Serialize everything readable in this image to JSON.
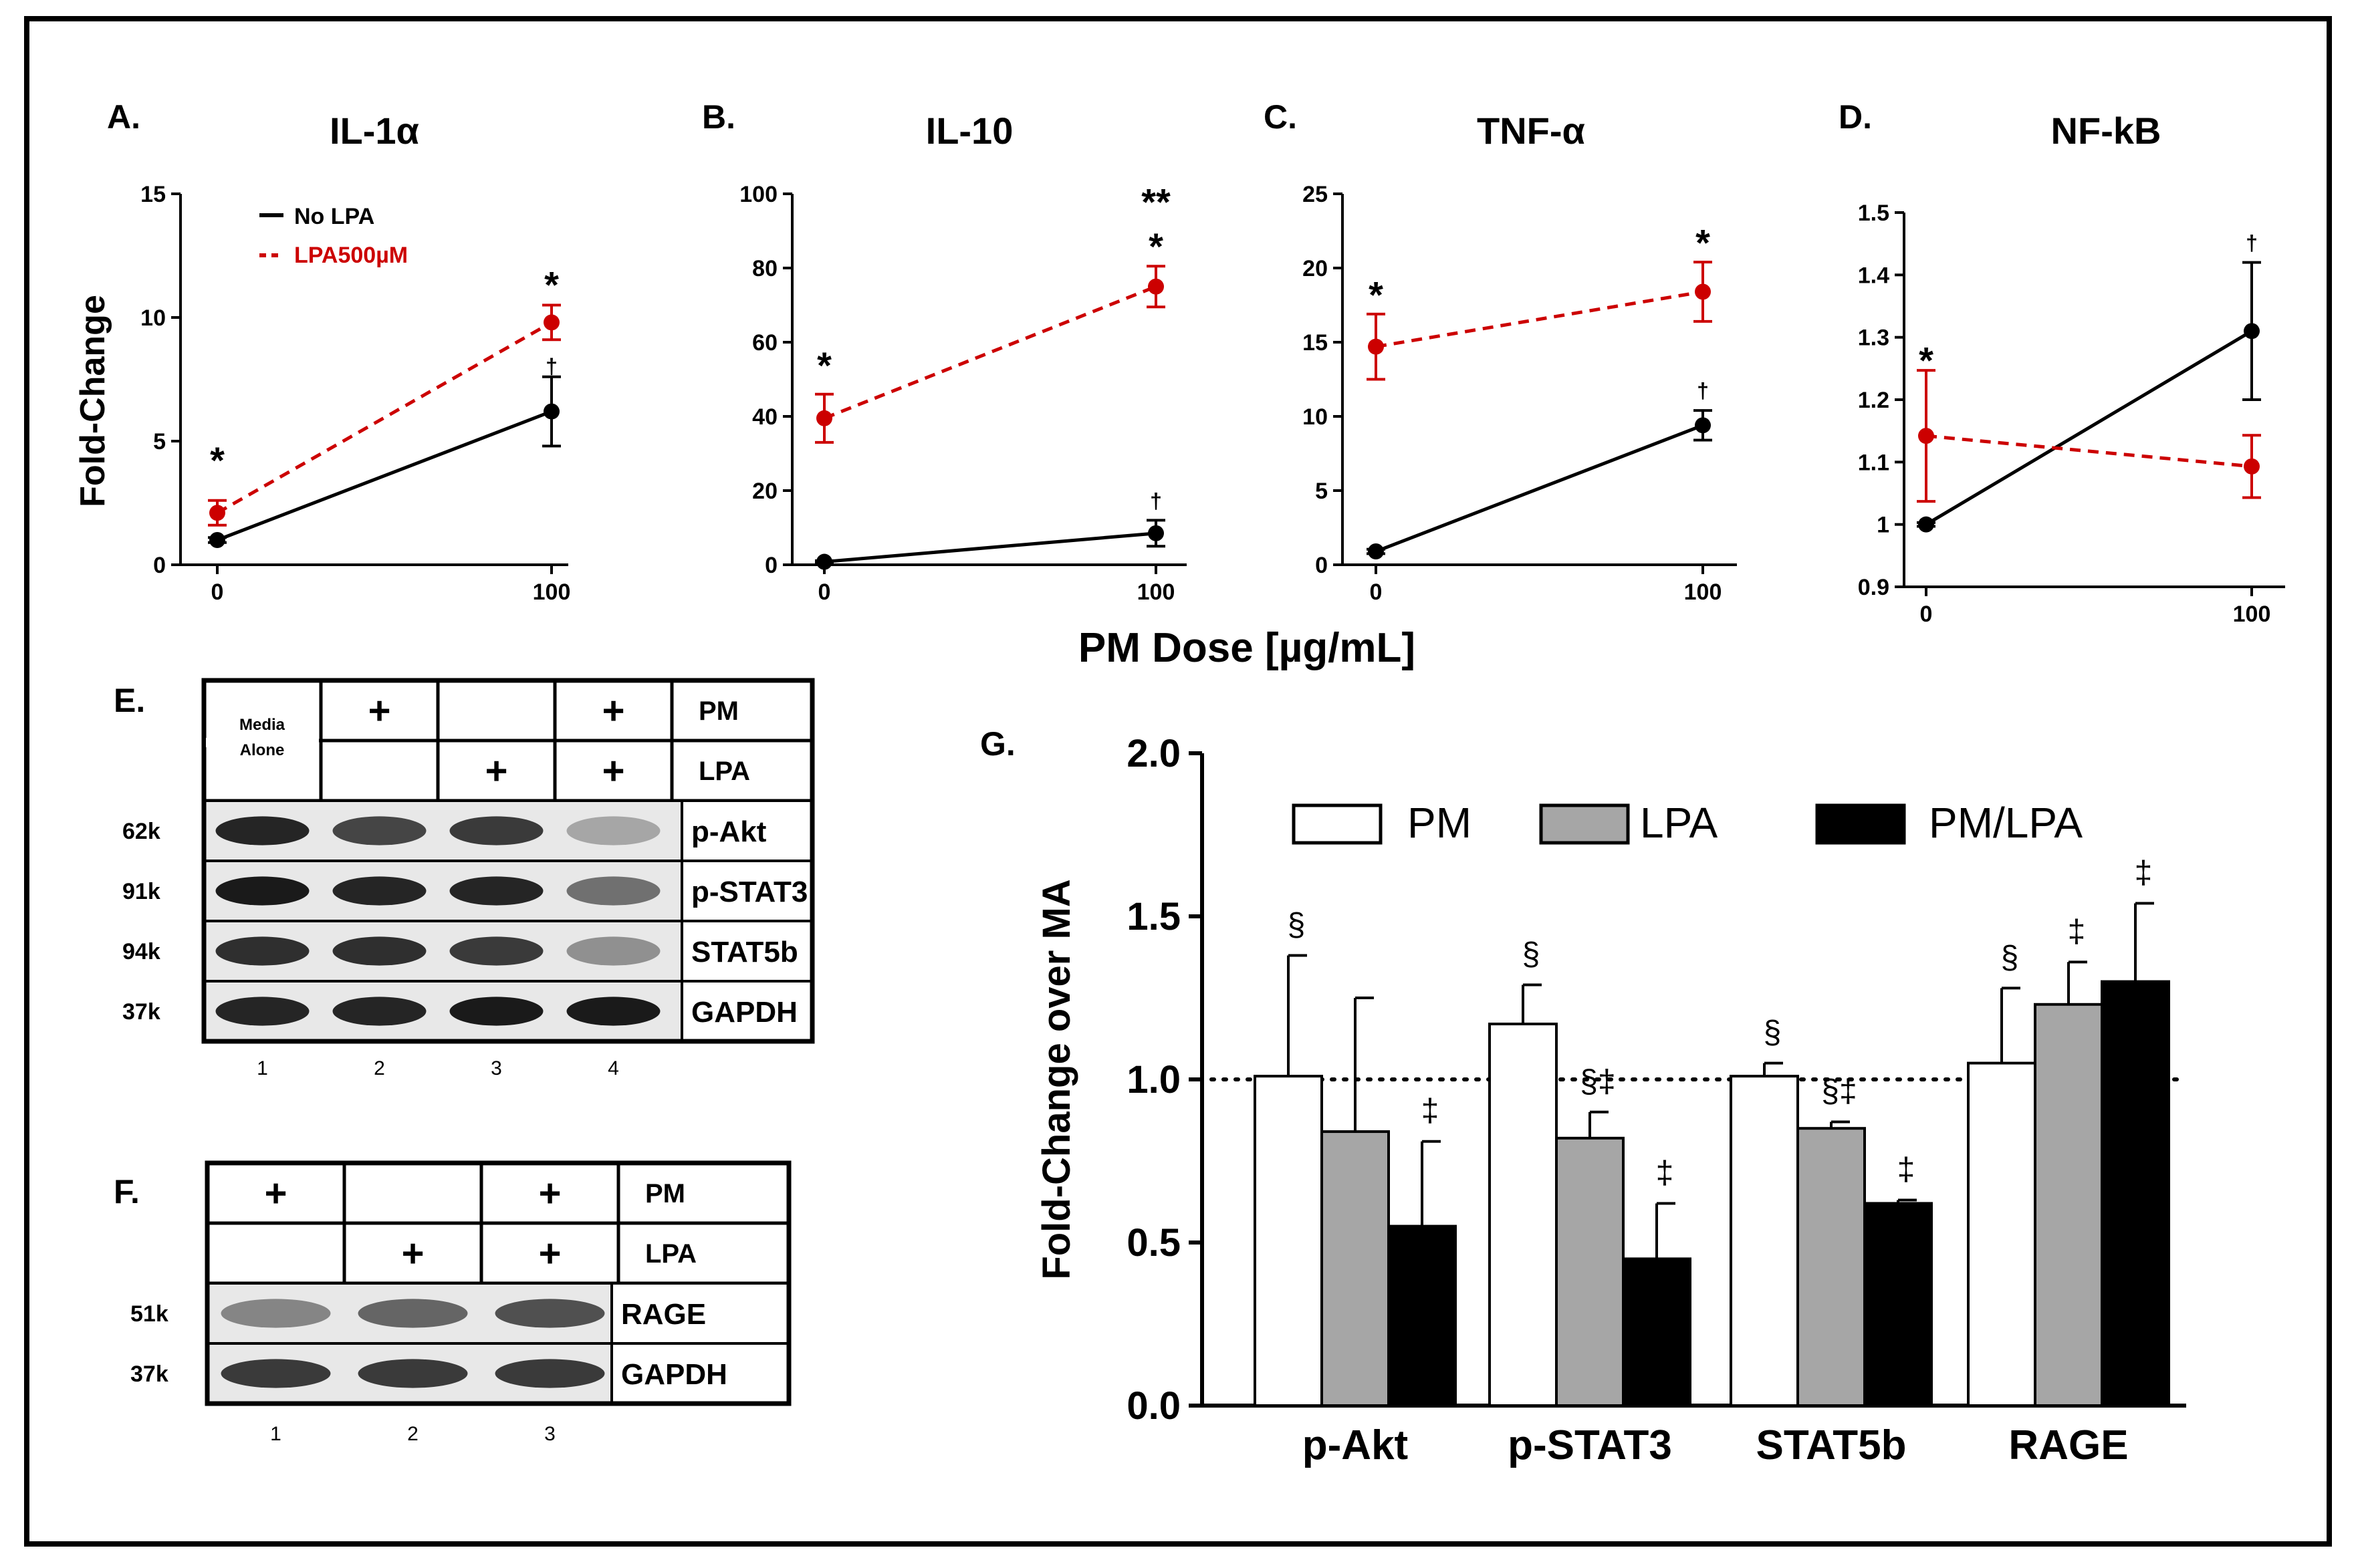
{
  "panel_letters": {
    "A": "A.",
    "B": "B.",
    "C": "C.",
    "D": "D.",
    "E": "E.",
    "F": "F.",
    "G": "G."
  },
  "shared_xlabel": "PM Dose [µg/mL]",
  "line_ylabel": "Fold-Change",
  "legend": {
    "no_lpa": "No LPA",
    "lpa": "LPA500µM"
  },
  "colors": {
    "no_lpa": "#000000",
    "lpa": "#cc0000",
    "pm": "#ffffff",
    "lpa_bar": "#a6a6a6",
    "pmlpa": "#000000"
  },
  "chart_data": [
    {
      "id": "A",
      "type": "line",
      "title": "IL-1α",
      "xlabel": "PM Dose [µg/mL]",
      "ylabel": "Fold-Change",
      "x": [
        0,
        100
      ],
      "ylim": [
        0,
        15
      ],
      "yticks": [
        0,
        5,
        10,
        15
      ],
      "series": [
        {
          "name": "No LPA",
          "values": [
            1.0,
            6.2
          ],
          "err": [
            0.1,
            1.4
          ],
          "style": "solid"
        },
        {
          "name": "LPA500µM",
          "values": [
            2.1,
            9.8
          ],
          "err": [
            0.5,
            0.7
          ],
          "style": "dashed"
        }
      ],
      "annotations": [
        {
          "x": 0,
          "y": 4.4,
          "text": "*",
          "kind": "star"
        },
        {
          "x": 100,
          "y": 11.5,
          "text": "*",
          "kind": "star"
        },
        {
          "x": 100,
          "y": 8.0,
          "text": "†",
          "kind": "dagger"
        }
      ]
    },
    {
      "id": "B",
      "type": "line",
      "title": "IL-10",
      "xlabel": "PM Dose [µg/mL]",
      "ylabel": "",
      "x": [
        0,
        100
      ],
      "ylim": [
        0,
        100
      ],
      "yticks": [
        0,
        20,
        40,
        60,
        80,
        100
      ],
      "series": [
        {
          "name": "No LPA",
          "values": [
            0.8,
            8.5
          ],
          "err": [
            0.3,
            3.5
          ],
          "style": "solid"
        },
        {
          "name": "LPA500µM",
          "values": [
            39.5,
            75.0
          ],
          "err": [
            6.5,
            5.5
          ],
          "style": "dashed"
        }
      ],
      "annotations": [
        {
          "x": 0,
          "y": 55,
          "text": "*",
          "kind": "star"
        },
        {
          "x": 100,
          "y": 87,
          "text": "*",
          "kind": "star"
        },
        {
          "x": 100,
          "y": 99,
          "text": "**",
          "kind": "star"
        },
        {
          "x": 100,
          "y": 17,
          "text": "†",
          "kind": "dagger"
        }
      ]
    },
    {
      "id": "C",
      "type": "line",
      "title": "TNF-α",
      "xlabel": "PM Dose [µg/mL]",
      "ylabel": "",
      "x": [
        0,
        100
      ],
      "ylim": [
        0,
        25
      ],
      "yticks": [
        0,
        5,
        10,
        15,
        20,
        25
      ],
      "series": [
        {
          "name": "No LPA",
          "values": [
            0.9,
            9.4
          ],
          "err": [
            0.15,
            1.0
          ],
          "style": "solid"
        },
        {
          "name": "LPA500µM",
          "values": [
            14.7,
            18.4
          ],
          "err": [
            2.2,
            2.0
          ],
          "style": "dashed"
        }
      ],
      "annotations": [
        {
          "x": 0,
          "y": 18.5,
          "text": "*",
          "kind": "star"
        },
        {
          "x": 100,
          "y": 22.0,
          "text": "*",
          "kind": "star"
        },
        {
          "x": 100,
          "y": 11.7,
          "text": "†",
          "kind": "dagger"
        }
      ]
    },
    {
      "id": "D",
      "type": "line",
      "title": "NF-kB",
      "xlabel": "PM Dose [µg/mL]",
      "ylabel": "",
      "x": [
        0,
        100
      ],
      "ylim": [
        0.9,
        1.5
      ],
      "yticks": [
        0.9,
        1.0,
        1.1,
        1.2,
        1.3,
        1.4,
        1.5
      ],
      "series": [
        {
          "name": "No LPA",
          "values": [
            1.0,
            1.31
          ],
          "err": [
            0.003,
            0.11
          ],
          "style": "solid"
        },
        {
          "name": "LPA500µM",
          "values": [
            1.142,
            1.093
          ],
          "err": [
            0.105,
            0.05
          ],
          "style": "dashed"
        }
      ],
      "annotations": [
        {
          "x": 0,
          "y": 1.27,
          "text": "*",
          "kind": "star"
        },
        {
          "x": 100,
          "y": 1.45,
          "text": "†",
          "kind": "dagger"
        }
      ]
    },
    {
      "id": "G",
      "type": "bar",
      "title": "",
      "xlabel": "",
      "ylabel": "Fold-Change over MA",
      "categories": [
        "p-Akt",
        "p-STAT3",
        "STAT5b",
        "RAGE"
      ],
      "ylim": [
        0,
        2.0
      ],
      "yticks": [
        0.0,
        0.5,
        1.0,
        1.5,
        2.0
      ],
      "reference_line": 1.0,
      "legend_position": "top",
      "series": [
        {
          "name": "PM",
          "values": [
            1.01,
            1.17,
            1.01,
            1.05
          ],
          "err": [
            0.37,
            0.12,
            0.04,
            0.23
          ]
        },
        {
          "name": "LPA",
          "values": [
            0.84,
            0.82,
            0.85,
            1.23
          ],
          "err": [
            0.41,
            0.08,
            0.02,
            0.13
          ]
        },
        {
          "name": "PM/LPA",
          "values": [
            0.55,
            0.45,
            0.62,
            1.3
          ],
          "err": [
            0.26,
            0.17,
            0.01,
            0.24
          ]
        }
      ],
      "annotations": [
        {
          "cat": 0,
          "series": 0,
          "text": "§"
        },
        {
          "cat": 0,
          "series": 2,
          "text": "‡"
        },
        {
          "cat": 1,
          "series": 0,
          "text": "§"
        },
        {
          "cat": 1,
          "series": 1,
          "text": "§‡"
        },
        {
          "cat": 1,
          "series": 2,
          "text": "‡"
        },
        {
          "cat": 2,
          "series": 0,
          "text": "§"
        },
        {
          "cat": 2,
          "series": 1,
          "text": "§‡"
        },
        {
          "cat": 2,
          "series": 2,
          "text": "‡"
        },
        {
          "cat": 3,
          "series": 0,
          "text": "§"
        },
        {
          "cat": 3,
          "series": 1,
          "text": "‡"
        },
        {
          "cat": 3,
          "series": 2,
          "text": "‡"
        }
      ]
    }
  ],
  "blot_e": {
    "header_rows": [
      {
        "label": "PM",
        "marks": [
          "",
          "+",
          "",
          "+"
        ]
      },
      {
        "label": "LPA",
        "marks": [
          "",
          "",
          "+",
          "+"
        ]
      }
    ],
    "media_alone": "Media Alone",
    "rows": [
      {
        "mw": "62k",
        "label": "p-Akt",
        "intensity": [
          0.9,
          0.75,
          0.8,
          0.3
        ]
      },
      {
        "mw": "91k",
        "label": "p-STAT3",
        "intensity": [
          0.95,
          0.9,
          0.9,
          0.55
        ]
      },
      {
        "mw": "94k",
        "label": "STAT5b",
        "intensity": [
          0.85,
          0.85,
          0.8,
          0.4
        ]
      },
      {
        "mw": "37k",
        "label": "GAPDH",
        "intensity": [
          0.9,
          0.9,
          0.95,
          0.95
        ]
      }
    ],
    "lanes": [
      "1",
      "2",
      "3",
      "4"
    ]
  },
  "blot_f": {
    "header_rows": [
      {
        "label": "PM",
        "marks": [
          "+",
          "",
          "+"
        ]
      },
      {
        "label": "LPA",
        "marks": [
          "",
          "+",
          "+"
        ]
      }
    ],
    "rows": [
      {
        "mw": "51k",
        "label": "RAGE",
        "intensity": [
          0.45,
          0.6,
          0.7
        ]
      },
      {
        "mw": "37k",
        "label": "GAPDH",
        "intensity": [
          0.8,
          0.8,
          0.8
        ]
      }
    ],
    "lanes": [
      "1",
      "2",
      "3"
    ]
  }
}
